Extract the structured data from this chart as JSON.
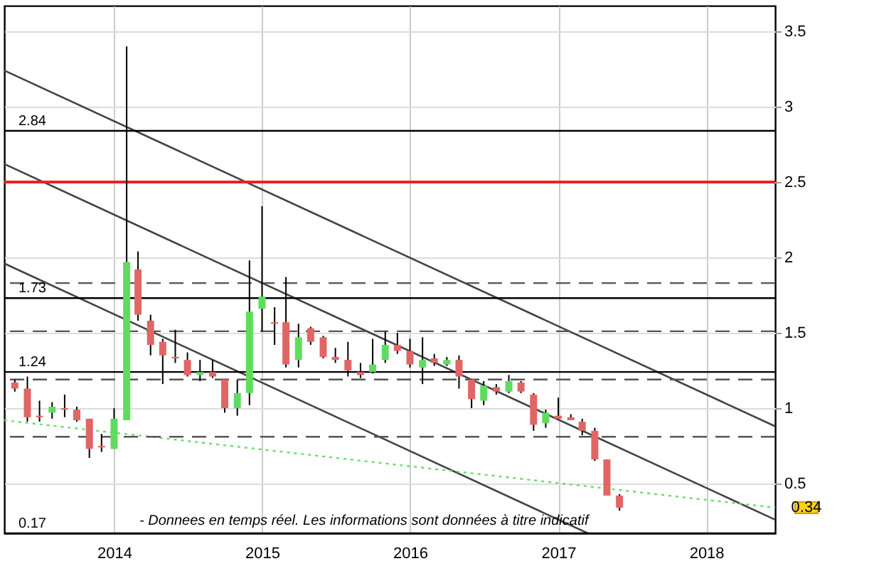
{
  "chart_data": {
    "type": "candlestick",
    "x": [
      "2013-05",
      "2013-06",
      "2013-07",
      "2013-08",
      "2013-09",
      "2013-10",
      "2013-11",
      "2013-12",
      "2014-01",
      "2014-02",
      "2014-03",
      "2014-04",
      "2014-05",
      "2014-06",
      "2014-07",
      "2014-08",
      "2014-09",
      "2014-10",
      "2014-11",
      "2014-12",
      "2015-01",
      "2015-02",
      "2015-03",
      "2015-04",
      "2015-05",
      "2015-06",
      "2015-07",
      "2015-08",
      "2015-09",
      "2015-10",
      "2015-11",
      "2015-12",
      "2016-01",
      "2016-02",
      "2016-03",
      "2016-04",
      "2016-05",
      "2016-06",
      "2016-07",
      "2016-08",
      "2016-09",
      "2016-10",
      "2016-11",
      "2016-12",
      "2017-01",
      "2017-02",
      "2017-03",
      "2017-04",
      "2017-05",
      "2017-06"
    ],
    "ohlc": [
      [
        1.17,
        1.19,
        1.11,
        1.13
      ],
      [
        1.13,
        1.21,
        0.91,
        0.94
      ],
      [
        0.95,
        1.05,
        0.91,
        0.94
      ],
      [
        0.97,
        1.04,
        0.93,
        1.01
      ],
      [
        1.0,
        1.09,
        0.94,
        0.99
      ],
      [
        0.99,
        1.01,
        0.91,
        0.92
      ],
      [
        0.93,
        0.93,
        0.67,
        0.73
      ],
      [
        0.75,
        0.83,
        0.71,
        0.74
      ],
      [
        0.73,
        1.0,
        0.73,
        0.93
      ],
      [
        0.92,
        3.4,
        0.92,
        1.97
      ],
      [
        1.92,
        2.04,
        1.58,
        1.62
      ],
      [
        1.58,
        1.62,
        1.35,
        1.42
      ],
      [
        1.44,
        1.46,
        1.16,
        1.35
      ],
      [
        1.34,
        1.52,
        1.3,
        1.33
      ],
      [
        1.32,
        1.37,
        1.21,
        1.22
      ],
      [
        1.22,
        1.32,
        1.18,
        1.24
      ],
      [
        1.24,
        1.32,
        1.2,
        1.21
      ],
      [
        1.19,
        1.19,
        0.97,
        1.0
      ],
      [
        1.0,
        1.19,
        0.95,
        1.1
      ],
      [
        1.1,
        1.98,
        1.02,
        1.64
      ],
      [
        1.66,
        2.34,
        1.51,
        1.74
      ],
      [
        1.57,
        1.67,
        1.42,
        1.56
      ],
      [
        1.57,
        1.87,
        1.27,
        1.29
      ],
      [
        1.32,
        1.56,
        1.27,
        1.47
      ],
      [
        1.53,
        1.54,
        1.42,
        1.44
      ],
      [
        1.47,
        1.48,
        1.33,
        1.34
      ],
      [
        1.34,
        1.4,
        1.3,
        1.32
      ],
      [
        1.32,
        1.44,
        1.21,
        1.25
      ],
      [
        1.24,
        1.3,
        1.2,
        1.22
      ],
      [
        1.24,
        1.46,
        1.23,
        1.29
      ],
      [
        1.32,
        1.51,
        1.3,
        1.42
      ],
      [
        1.42,
        1.5,
        1.36,
        1.38
      ],
      [
        1.38,
        1.46,
        1.27,
        1.29
      ],
      [
        1.27,
        1.47,
        1.16,
        1.32
      ],
      [
        1.33,
        1.36,
        1.28,
        1.3
      ],
      [
        1.29,
        1.34,
        1.28,
        1.32
      ],
      [
        1.32,
        1.35,
        1.13,
        1.21
      ],
      [
        1.19,
        1.19,
        1.0,
        1.06
      ],
      [
        1.05,
        1.18,
        1.02,
        1.15
      ],
      [
        1.14,
        1.16,
        1.09,
        1.11
      ],
      [
        1.11,
        1.22,
        1.1,
        1.18
      ],
      [
        1.17,
        1.18,
        1.1,
        1.11
      ],
      [
        1.09,
        1.1,
        0.85,
        0.89
      ],
      [
        0.9,
        0.99,
        0.87,
        0.97
      ],
      [
        0.95,
        1.07,
        0.93,
        0.93
      ],
      [
        0.94,
        0.96,
        0.92,
        0.92
      ],
      [
        0.91,
        0.93,
        0.82,
        0.85
      ],
      [
        0.85,
        0.87,
        0.65,
        0.66
      ],
      [
        0.66,
        0.66,
        0.42,
        0.42
      ],
      [
        0.42,
        0.43,
        0.32,
        0.34
      ]
    ],
    "series": [
      {
        "type": "line",
        "color": "#444444",
        "x": [
          "2013-04-05",
          "2018-06-20"
        ],
        "values": [
          3.24,
          0.88
        ]
      },
      {
        "type": "line",
        "color": "#444444",
        "x": [
          "2013-04-05",
          "2018-06-20"
        ],
        "values": [
          2.62,
          0.26
        ]
      },
      {
        "type": "line",
        "color": "#444444",
        "x": [
          "2013-04-05",
          "2017-03-15"
        ],
        "values": [
          1.96,
          0.17
        ]
      },
      {
        "type": "line",
        "color": "#66dd66",
        "line_style": "dotted",
        "x": [
          "2013-04-05",
          "2018-06-20"
        ],
        "values": [
          0.92,
          0.34
        ]
      }
    ],
    "ref_lines": [
      {
        "axis": "y",
        "value": 2.84,
        "label": "2.84",
        "color": "#000000",
        "line_style": "solid"
      },
      {
        "axis": "y",
        "value": 2.5,
        "color": "#ee2222",
        "line_style": "solid"
      },
      {
        "axis": "y",
        "value": 1.83,
        "color": "#555555",
        "line_style": "dashed"
      },
      {
        "axis": "y",
        "value": 1.73,
        "label": "1.73",
        "color": "#000000",
        "line_style": "solid"
      },
      {
        "axis": "y",
        "value": 1.51,
        "color": "#555555",
        "line_style": "dashed"
      },
      {
        "axis": "y",
        "value": 1.24,
        "label": "1.24",
        "color": "#000000",
        "line_style": "solid"
      },
      {
        "axis": "y",
        "value": 1.19,
        "color": "#555555",
        "line_style": "dashed"
      },
      {
        "axis": "y",
        "value": 0.81,
        "color": "#555555",
        "line_style": "dashed"
      },
      {
        "axis": "y",
        "value": 0.17,
        "label": "0.17",
        "color": "#000000",
        "line_style": "solid"
      }
    ],
    "annotations": [
      "- Donnees en temps réel. Les informations sont données à titre indicatif",
      "0.34"
    ],
    "xlim": [
      "2013-04-05",
      "2018-06-20"
    ],
    "xticks": [
      "2014",
      "2015",
      "2016",
      "2017",
      "2018"
    ],
    "ylim": [
      0.17,
      3.67
    ],
    "yticks": [
      0.5,
      1,
      1.5,
      2,
      2.5,
      3,
      3.5
    ],
    "grid": true
  }
}
